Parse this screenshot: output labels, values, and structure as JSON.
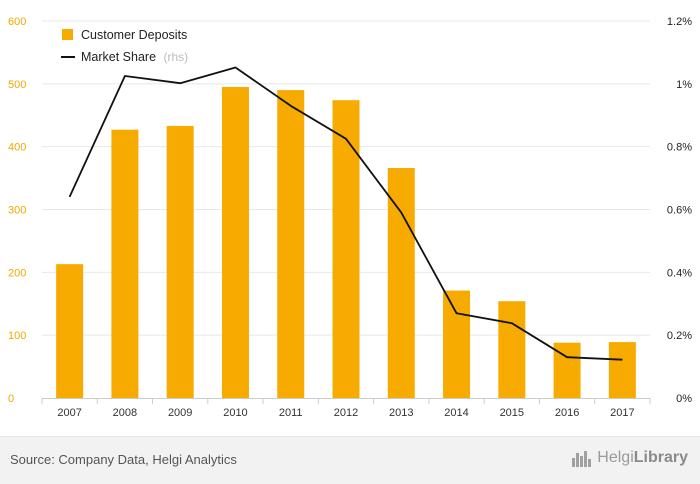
{
  "chart_data": {
    "type": "bar",
    "categories": [
      "2007",
      "2008",
      "2009",
      "2010",
      "2011",
      "2012",
      "2013",
      "2014",
      "2015",
      "2016",
      "2017"
    ],
    "series": [
      {
        "name": "Customer Deposits",
        "type": "bar",
        "axis": "left",
        "values": [
          213,
          427,
          433,
          495,
          490,
          474,
          366,
          171,
          154,
          88,
          89
        ]
      },
      {
        "name": "Market Share",
        "type": "line",
        "axis": "right",
        "values": [
          0.0064,
          0.01025,
          0.01002,
          0.01052,
          0.0093,
          0.00825,
          0.0059,
          0.0027,
          0.00238,
          0.0013,
          0.00122
        ]
      }
    ],
    "ylim_left": [
      0,
      600
    ],
    "yticks_left": [
      "0",
      "100",
      "200",
      "300",
      "400",
      "500",
      "600"
    ],
    "ylim_right": [
      0,
      0.012
    ],
    "yticks_right": [
      "0%",
      "0.2%",
      "0.4%",
      "0.6%",
      "0.8%",
      "1%",
      "1.2%"
    ],
    "legend": {
      "position": "top-left",
      "items": [
        {
          "label": "Customer Deposits",
          "suffix": ""
        },
        {
          "label": "Market Share",
          "suffix": "(rhs)"
        }
      ]
    },
    "grid": true,
    "colors": {
      "bar": "#f7ab00",
      "line": "#111111",
      "grid": "#e8e8e8",
      "left_ticks": "#f0a800"
    }
  },
  "footer": {
    "source": "Source: Company Data, Helgi Analytics",
    "brand_light": "Helgi",
    "brand_bold": "Library",
    "brand_icon": "city-skyline-icon"
  }
}
